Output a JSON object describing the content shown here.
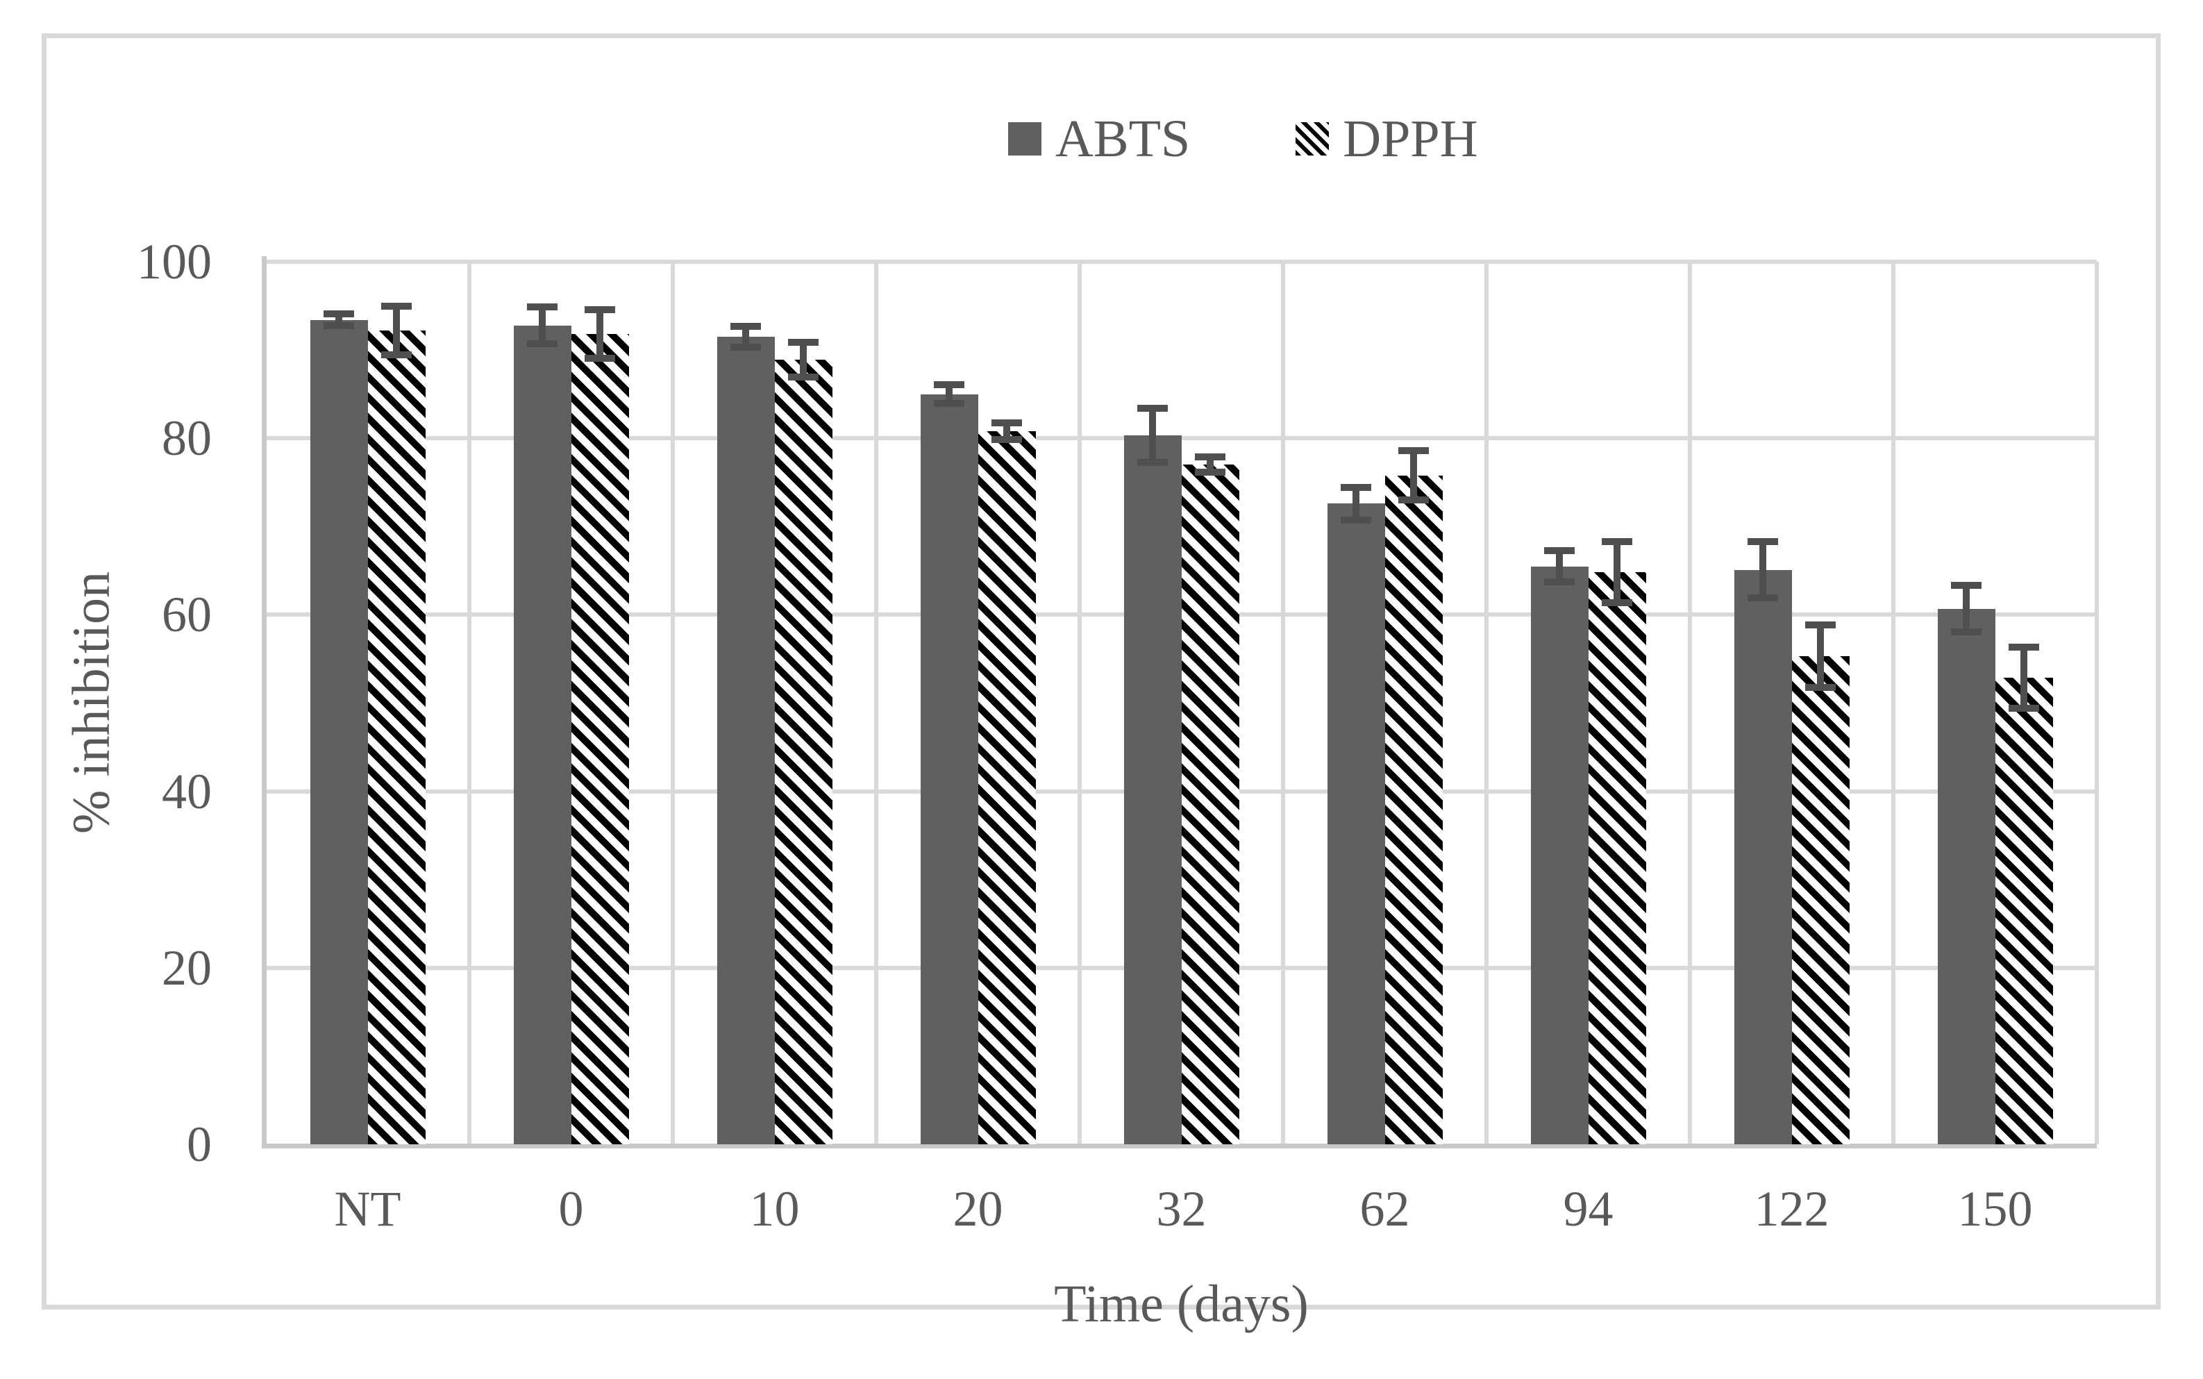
{
  "legend": {
    "series1_label": "ABTS",
    "series2_label": "DPPH"
  },
  "axes": {
    "y_title": "% inhibition",
    "x_title": "Time (days)"
  },
  "colors": {
    "bar_fill": "#606060",
    "hatch_stripe": "#000000",
    "error_bar": "#4f4f4f",
    "gridline": "#d9d9d9",
    "axis_line": "#c9c9c9",
    "text": "#595959",
    "figure_border": "#d9d9d9"
  },
  "chart_data": {
    "type": "bar",
    "title": "",
    "xlabel": "Time (days)",
    "ylabel": "% inhibition",
    "categories": [
      "NT",
      "0",
      "10",
      "20",
      "32",
      "62",
      "94",
      "122",
      "150"
    ],
    "series": [
      {
        "name": "ABTS",
        "style": "solid-gray",
        "values": [
          93.4,
          92.8,
          91.5,
          85.0,
          80.3,
          72.6,
          65.5,
          65.1,
          60.7
        ],
        "errors": [
          0.9,
          2.3,
          1.4,
          1.3,
          3.3,
          2.1,
          2.0,
          3.4,
          2.9
        ]
      },
      {
        "name": "DPPH",
        "style": "diagonal-hatch",
        "values": [
          92.2,
          91.8,
          88.9,
          80.8,
          77.0,
          75.8,
          64.8,
          55.3,
          52.9
        ],
        "errors": [
          3.0,
          3.0,
          2.2,
          1.2,
          1.1,
          3.0,
          3.7,
          3.8,
          3.7
        ]
      }
    ],
    "ylim": [
      0,
      100
    ],
    "yticks": [
      0,
      20,
      40,
      60,
      80,
      100
    ],
    "grid": "on",
    "legend_position": "top-center",
    "error_bars": "both-directions"
  }
}
